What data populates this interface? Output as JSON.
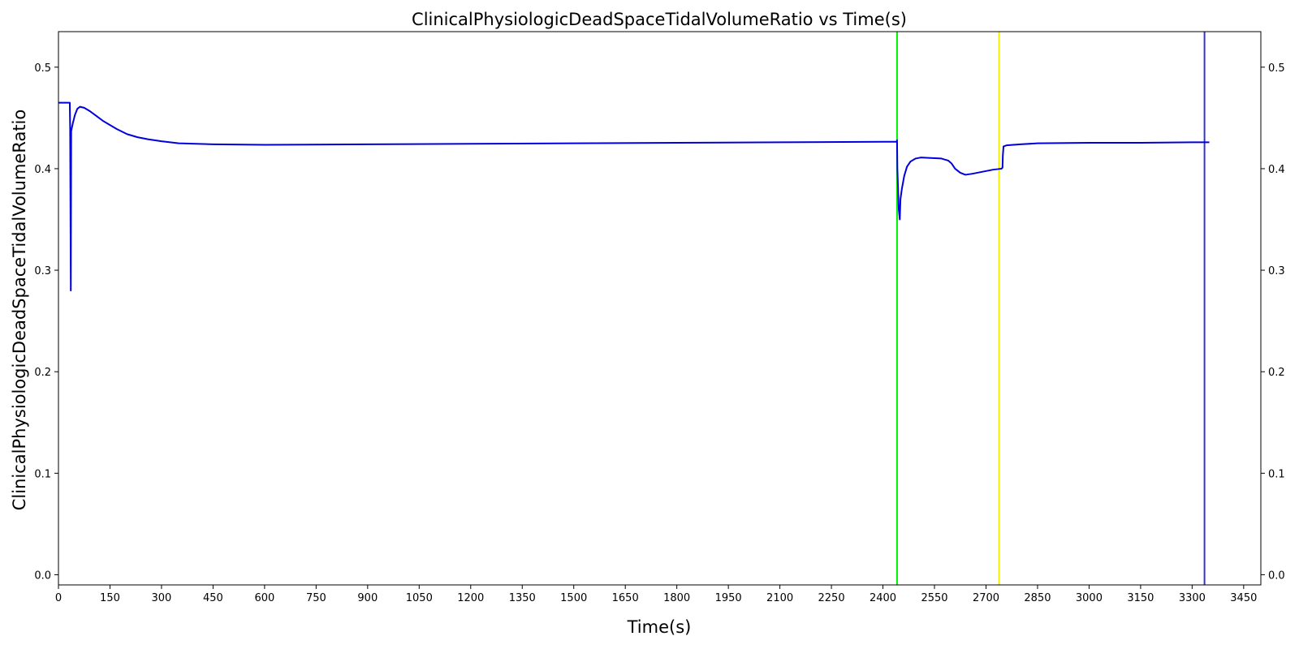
{
  "chart_data": {
    "type": "line",
    "title": "ClinicalPhysiologicDeadSpaceTidalVolumeRatio vs Time(s)",
    "xlabel": "Time(s)",
    "ylabel": "ClinicalPhysiologicDeadSpaceTidalVolumeRatio",
    "xlim": [
      0,
      3500
    ],
    "ylim": [
      -0.01,
      0.535
    ],
    "x_ticks": [
      0,
      150,
      300,
      450,
      600,
      750,
      900,
      1050,
      1200,
      1350,
      1500,
      1650,
      1800,
      1950,
      2100,
      2250,
      2400,
      2550,
      2700,
      2850,
      3000,
      3150,
      3300,
      3450
    ],
    "y_ticks": [
      0.0,
      0.1,
      0.2,
      0.3,
      0.4,
      0.5
    ],
    "grid": false,
    "right_axis": true,
    "series": [
      {
        "color": "#0000dd",
        "points": [
          [
            0,
            0.465
          ],
          [
            33,
            0.465
          ],
          [
            34,
            0.44
          ],
          [
            36,
            0.28
          ],
          [
            37,
            0.437
          ],
          [
            42,
            0.445
          ],
          [
            48,
            0.453
          ],
          [
            55,
            0.459
          ],
          [
            63,
            0.461
          ],
          [
            75,
            0.46
          ],
          [
            90,
            0.457
          ],
          [
            110,
            0.452
          ],
          [
            130,
            0.447
          ],
          [
            150,
            0.443
          ],
          [
            170,
            0.439
          ],
          [
            200,
            0.434
          ],
          [
            230,
            0.431
          ],
          [
            260,
            0.429
          ],
          [
            300,
            0.427
          ],
          [
            350,
            0.425
          ],
          [
            400,
            0.4245
          ],
          [
            450,
            0.424
          ],
          [
            600,
            0.4235
          ],
          [
            900,
            0.424
          ],
          [
            1200,
            0.4245
          ],
          [
            1500,
            0.425
          ],
          [
            1800,
            0.4255
          ],
          [
            2100,
            0.426
          ],
          [
            2400,
            0.4265
          ],
          [
            2440,
            0.4265
          ],
          [
            2441,
            0.428
          ],
          [
            2442,
            0.4
          ],
          [
            2446,
            0.36
          ],
          [
            2449,
            0.35
          ],
          [
            2451,
            0.37
          ],
          [
            2455,
            0.38
          ],
          [
            2462,
            0.393
          ],
          [
            2470,
            0.402
          ],
          [
            2480,
            0.407
          ],
          [
            2495,
            0.41
          ],
          [
            2510,
            0.411
          ],
          [
            2540,
            0.4105
          ],
          [
            2570,
            0.41
          ],
          [
            2590,
            0.408
          ],
          [
            2600,
            0.405
          ],
          [
            2610,
            0.4
          ],
          [
            2625,
            0.396
          ],
          [
            2640,
            0.394
          ],
          [
            2660,
            0.395
          ],
          [
            2690,
            0.397
          ],
          [
            2720,
            0.399
          ],
          [
            2745,
            0.4
          ],
          [
            2748,
            0.401
          ],
          [
            2749,
            0.413
          ],
          [
            2751,
            0.422
          ],
          [
            2760,
            0.423
          ],
          [
            2800,
            0.424
          ],
          [
            2850,
            0.425
          ],
          [
            3000,
            0.4255
          ],
          [
            3150,
            0.4255
          ],
          [
            3300,
            0.426
          ],
          [
            3350,
            0.426
          ]
        ]
      }
    ],
    "vertical_lines": [
      {
        "x": 2441,
        "color": "#00ee00"
      },
      {
        "x": 2738,
        "color": "#f0f000"
      },
      {
        "x": 3336,
        "color": "#3333dd"
      }
    ]
  }
}
